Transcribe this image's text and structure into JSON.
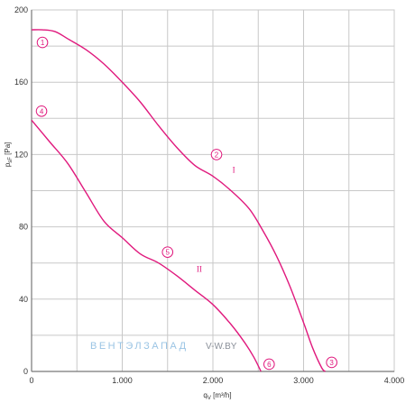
{
  "chart_data": {
    "type": "line",
    "title": "",
    "xlabel_main": "q",
    "xlabel_sub": "V",
    "xlabel_unit": " [m³/h]",
    "ylabel_main": "p",
    "ylabel_sub": "sF",
    "ylabel_unit": " [Pa]",
    "xlim": [
      0,
      4000
    ],
    "ylim": [
      0,
      200
    ],
    "x_ticks": [
      0,
      1000,
      2000,
      3000,
      4000
    ],
    "x_tick_labels": [
      "0",
      "1.000",
      "2.000",
      "3.000",
      "4.000"
    ],
    "y_ticks": [
      0,
      40,
      80,
      120,
      160,
      200
    ],
    "y_tick_labels": [
      "0",
      "40",
      "80",
      "120",
      "160",
      "200"
    ],
    "grid": true,
    "curve_color": "#e0197d",
    "series": [
      {
        "name": "I",
        "x": [
          0,
          120,
          260,
          400,
          600,
          800,
          1000,
          1200,
          1400,
          1600,
          1800,
          2000,
          2200,
          2400,
          2550,
          2700,
          2850,
          3000,
          3100,
          3200,
          3240
        ],
        "y": [
          189,
          189,
          188,
          184,
          178,
          170,
          160,
          149,
          136,
          124,
          114,
          108,
          100,
          90,
          78,
          64,
          47,
          27,
          13,
          2,
          0
        ],
        "label_position": [
          2230,
          110
        ]
      },
      {
        "name": "II",
        "x": [
          0,
          200,
          400,
          600,
          800,
          1000,
          1200,
          1400,
          1600,
          1800,
          2000,
          2200,
          2350,
          2450,
          2530
        ],
        "y": [
          139,
          127,
          115,
          99,
          83,
          74,
          65,
          60,
          53,
          45,
          37,
          26,
          16,
          8,
          0
        ],
        "label_position": [
          1850,
          55
        ]
      }
    ],
    "markers": [
      {
        "label": "1",
        "x": 120,
        "y": 182
      },
      {
        "label": "2",
        "x": 2040,
        "y": 120
      },
      {
        "label": "3",
        "x": 3310,
        "y": 5
      },
      {
        "label": "4",
        "x": 110,
        "y": 144
      },
      {
        "label": "5",
        "x": 1500,
        "y": 66
      },
      {
        "label": "6",
        "x": 2620,
        "y": 4
      }
    ]
  },
  "watermark": {
    "brand": "ВЕНТЭЛЗАПАД",
    "site": "V-W.BY",
    "color_light": "#9ac4e4",
    "color_dark": "#8a9099"
  }
}
